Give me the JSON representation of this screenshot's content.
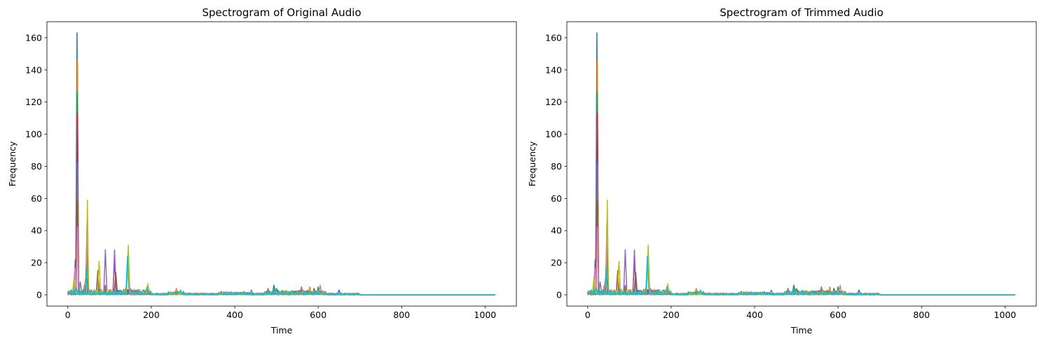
{
  "chart_data": [
    {
      "type": "line",
      "title": "Spectrogram of Original Audio",
      "xlabel": "Time",
      "ylabel": "Frequency",
      "xlim": [
        -50,
        1075
      ],
      "ylim": [
        -7,
        170
      ],
      "xticks": [
        0,
        200,
        400,
        600,
        800,
        1000
      ],
      "yticks": [
        0,
        20,
        40,
        60,
        80,
        100,
        120,
        140,
        160
      ],
      "x_extent": [
        0,
        1024
      ],
      "grid": false,
      "series": [
        {
          "color": "#1f77b4",
          "peaks": [
            [
              22,
              163
            ],
            [
              18,
              22
            ],
            [
              40,
              6
            ],
            [
              494,
              6
            ],
            [
              650,
              3
            ]
          ]
        },
        {
          "color": "#ff7f0e",
          "peaks": [
            [
              23,
              146
            ],
            [
              25,
              12
            ],
            [
              48,
              7
            ],
            [
              260,
              4
            ],
            [
              580,
              5
            ]
          ]
        },
        {
          "color": "#2ca02c",
          "peaks": [
            [
              23,
              126
            ],
            [
              46,
              10
            ],
            [
              88,
              5
            ],
            [
              500,
              4
            ],
            [
              600,
              5
            ]
          ]
        },
        {
          "color": "#d62728",
          "peaks": [
            [
              23,
              113
            ],
            [
              46,
              45
            ],
            [
              112,
              22
            ],
            [
              140,
              5
            ],
            [
              560,
              3
            ]
          ]
        },
        {
          "color": "#9467bd",
          "peaks": [
            [
              23,
              82
            ],
            [
              46,
              34
            ],
            [
              90,
              28
            ],
            [
              112,
              28
            ],
            [
              440,
              3
            ]
          ]
        },
        {
          "color": "#8c564b",
          "peaks": [
            [
              23,
              58
            ],
            [
              46,
              27
            ],
            [
              72,
              15
            ],
            [
              115,
              14
            ],
            [
              590,
              4
            ]
          ]
        },
        {
          "color": "#e377c2",
          "peaks": [
            [
              23,
              42
            ],
            [
              17,
              17
            ],
            [
              42,
              10
            ],
            [
              605,
              6
            ],
            [
              380,
              2
            ]
          ]
        },
        {
          "color": "#7f7f7f",
          "peaks": [
            [
              30,
              8
            ],
            [
              90,
              6
            ],
            [
              150,
              4
            ],
            [
              480,
              4
            ],
            [
              560,
              5
            ]
          ]
        },
        {
          "color": "#bcbd22",
          "peaks": [
            [
              47,
              59
            ],
            [
              145,
              31
            ],
            [
              75,
              21
            ],
            [
              192,
              7
            ],
            [
              15,
              11
            ]
          ]
        },
        {
          "color": "#17becf",
          "peaks": [
            [
              143,
              24
            ],
            [
              20,
              5
            ],
            [
              46,
              17
            ],
            [
              190,
              5
            ],
            [
              270,
              3
            ]
          ]
        }
      ],
      "noise_range": [
        0,
        700
      ]
    },
    {
      "type": "line",
      "title": "Spectrogram of Trimmed Audio",
      "xlabel": "Time",
      "ylabel": "Frequency",
      "xlim": [
        -50,
        1075
      ],
      "ylim": [
        -7,
        170
      ],
      "xticks": [
        0,
        200,
        400,
        600,
        800,
        1000
      ],
      "yticks": [
        0,
        20,
        40,
        60,
        80,
        100,
        120,
        140,
        160
      ],
      "x_extent": [
        0,
        1024
      ],
      "grid": false,
      "series": [
        {
          "color": "#1f77b4",
          "peaks": [
            [
              22,
              163
            ],
            [
              18,
              22
            ],
            [
              40,
              6
            ],
            [
              494,
              6
            ],
            [
              650,
              3
            ]
          ]
        },
        {
          "color": "#ff7f0e",
          "peaks": [
            [
              23,
              146
            ],
            [
              25,
              12
            ],
            [
              48,
              7
            ],
            [
              260,
              4
            ],
            [
              580,
              5
            ]
          ]
        },
        {
          "color": "#2ca02c",
          "peaks": [
            [
              23,
              126
            ],
            [
              46,
              10
            ],
            [
              88,
              5
            ],
            [
              500,
              4
            ],
            [
              600,
              5
            ]
          ]
        },
        {
          "color": "#d62728",
          "peaks": [
            [
              23,
              113
            ],
            [
              46,
              45
            ],
            [
              112,
              22
            ],
            [
              140,
              5
            ],
            [
              560,
              3
            ]
          ]
        },
        {
          "color": "#9467bd",
          "peaks": [
            [
              23,
              82
            ],
            [
              46,
              34
            ],
            [
              90,
              28
            ],
            [
              112,
              28
            ],
            [
              440,
              3
            ]
          ]
        },
        {
          "color": "#8c564b",
          "peaks": [
            [
              23,
              58
            ],
            [
              46,
              27
            ],
            [
              72,
              15
            ],
            [
              115,
              14
            ],
            [
              590,
              4
            ]
          ]
        },
        {
          "color": "#e377c2",
          "peaks": [
            [
              23,
              42
            ],
            [
              17,
              17
            ],
            [
              42,
              10
            ],
            [
              605,
              6
            ],
            [
              380,
              2
            ]
          ]
        },
        {
          "color": "#7f7f7f",
          "peaks": [
            [
              30,
              8
            ],
            [
              90,
              6
            ],
            [
              150,
              4
            ],
            [
              480,
              4
            ],
            [
              560,
              5
            ]
          ]
        },
        {
          "color": "#bcbd22",
          "peaks": [
            [
              47,
              59
            ],
            [
              145,
              31
            ],
            [
              75,
              21
            ],
            [
              192,
              7
            ],
            [
              15,
              11
            ]
          ]
        },
        {
          "color": "#17becf",
          "peaks": [
            [
              143,
              24
            ],
            [
              20,
              5
            ],
            [
              46,
              17
            ],
            [
              190,
              5
            ],
            [
              270,
              3
            ]
          ]
        }
      ],
      "noise_range": [
        0,
        700
      ]
    }
  ]
}
